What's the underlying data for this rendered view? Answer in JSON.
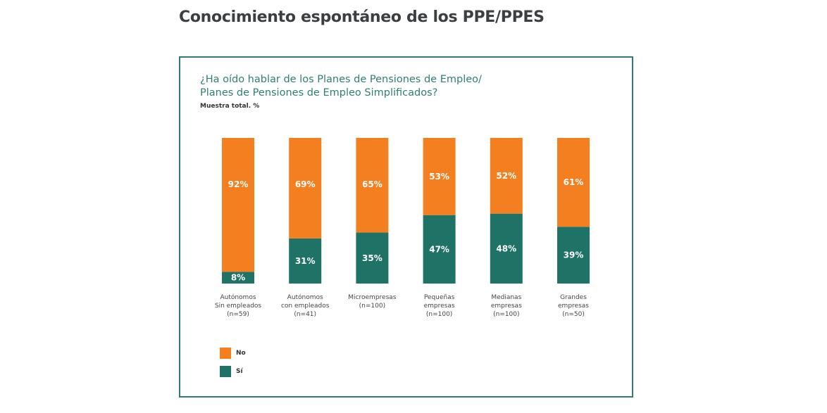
{
  "header": {
    "title": "Conocimiento espontáneo de los PPE/PPES"
  },
  "chart_data": {
    "type": "bar",
    "stacked": true,
    "percent": true,
    "title_lines": [
      "¿Ha oído hablar de los Planes de Pensiones de Empleo/",
      "Planes de Pensiones de Empleo Simplificados?"
    ],
    "subtitle": "Muestra total. %",
    "categories": [
      [
        "Autónomos",
        "Sin empleados",
        "(n=59)"
      ],
      [
        "Autónomos",
        "con empleados",
        "(n=41)"
      ],
      [
        "Microempresas",
        "(n=100)"
      ],
      [
        "Pequeñas",
        "empresas",
        "(n=100)"
      ],
      [
        "Medianas",
        "empresas",
        "(n=100)"
      ],
      [
        "Grandes",
        "empresas",
        "(n=50)"
      ]
    ],
    "series": [
      {
        "name": "Sí",
        "color": "#1e7266",
        "values": [
          8,
          31,
          35,
          47,
          48,
          39
        ]
      },
      {
        "name": "No",
        "color": "#f47f20",
        "values": [
          92,
          69,
          65,
          53,
          52,
          61
        ]
      }
    ],
    "ylim": [
      0,
      100
    ],
    "grid": false,
    "legend": {
      "position": "bottom-left",
      "items": [
        {
          "label": "No",
          "color": "#f47f20"
        },
        {
          "label": "Sí",
          "color": "#1e7266"
        }
      ]
    },
    "xlabel": "",
    "ylabel": ""
  }
}
